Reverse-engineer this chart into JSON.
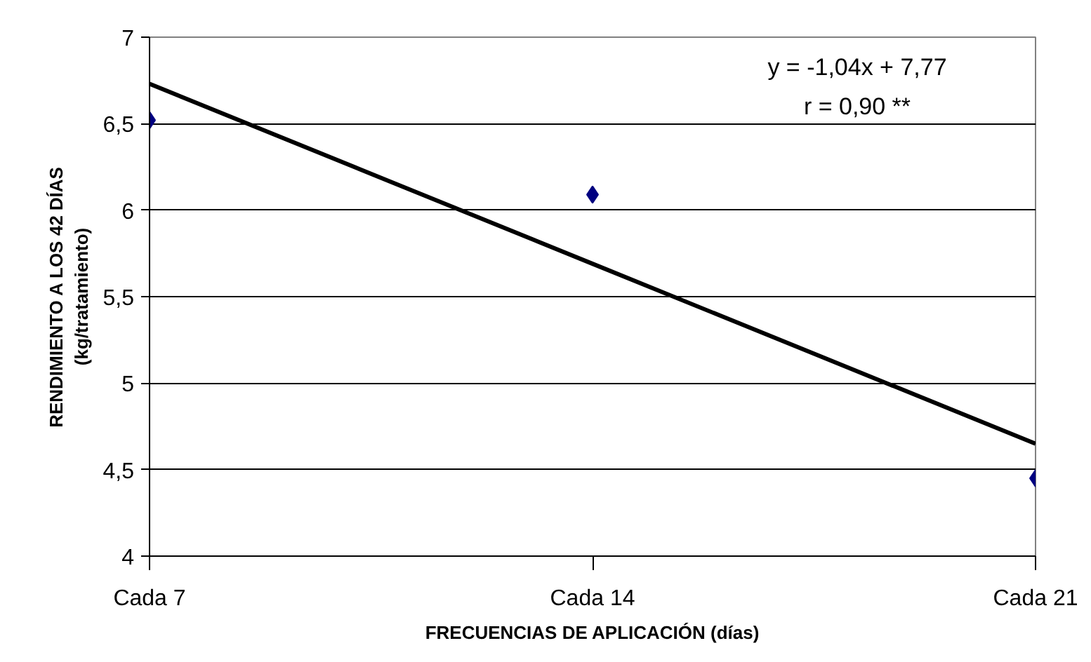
{
  "chart_data": {
    "type": "scatter",
    "xlabel": "FRECUENCIAS DE APLICACIÓN (días)",
    "ylabel": "RENDIMIENTO A LOS 42 DÍAS\n(kg/tratamiento)",
    "categories": [
      "Cada 7",
      "Cada 14",
      "Cada 21"
    ],
    "series": [
      {
        "color": "#000080",
        "marker": "diamond",
        "values": [
          6.52,
          6.09,
          4.45
        ]
      },
      {
        "type": "line",
        "color": "#000000",
        "line_style": "solid",
        "marker": "none",
        "values": [
          6.73,
          5.69,
          4.65
        ]
      }
    ],
    "ylim": [
      4,
      7
    ],
    "yticks": [
      4,
      {
        "value": 4.5,
        "label": "4,5"
      },
      5,
      {
        "value": 5.5,
        "label": "5,5"
      },
      6,
      {
        "value": 6.5,
        "label": "6,5"
      },
      7
    ],
    "grid": "y",
    "annotations": [
      "y = -1,04x + 7,77",
      "r = 0,90 **"
    ]
  }
}
